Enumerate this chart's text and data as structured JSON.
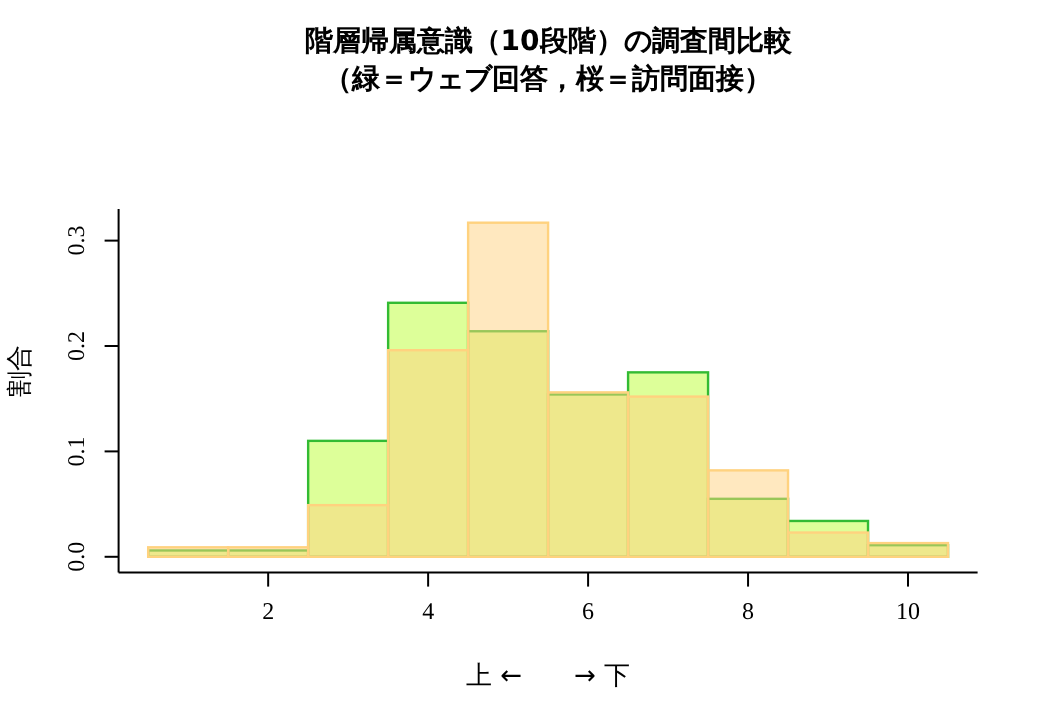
{
  "chart_data": {
    "type": "histogram",
    "title": "階層帰属意識（10段階）の調査間比較",
    "subtitle": "（緑＝ウェブ回答，桜＝訪問面接）",
    "xlabel": "上 ←　　→ 下",
    "ylabel": "割合",
    "xlim": [
      0.13,
      10.87
    ],
    "ylim": [
      -0.015,
      0.33
    ],
    "xticks": [
      2,
      4,
      6,
      8,
      10
    ],
    "yticks": [
      {
        "value": 0,
        "label": "0.0"
      },
      0.1,
      0.2,
      0.3
    ],
    "bins": [
      0.5,
      1.5,
      2.5,
      3.5,
      4.5,
      5.5,
      6.5,
      7.5,
      8.5,
      9.5,
      10.5
    ],
    "series": [
      {
        "color": "#ddff99",
        "values": [
          0.006,
          0.006,
          0.11,
          0.241,
          0.214,
          0.154,
          0.175,
          0.055,
          0.034,
          0.011
        ]
      },
      {
        "color": "#ffd27f",
        "values": [
          0.009,
          0.009,
          0.049,
          0.196,
          0.317,
          0.156,
          0.152,
          0.082,
          0.023,
          0.013
        ]
      }
    ]
  }
}
